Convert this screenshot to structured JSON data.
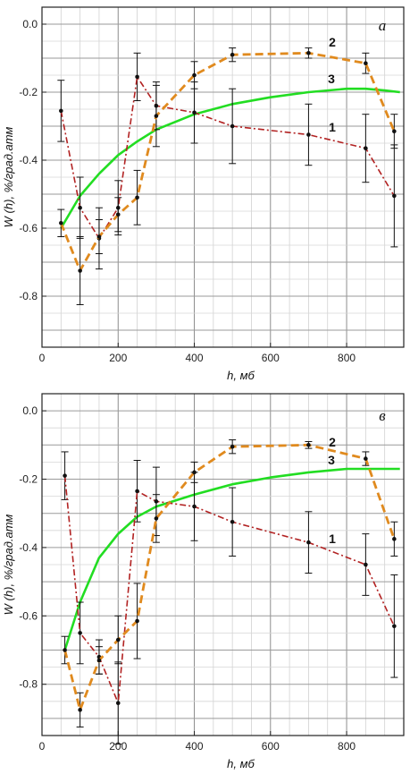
{
  "chart_data": [
    {
      "type": "line",
      "panel_label": "а",
      "xlabel": "h, мб",
      "ylabel": "W (h), %/град.атм",
      "xlim": [
        0,
        950
      ],
      "ylim": [
        -0.95,
        0.05
      ],
      "x_ticks": [
        0,
        200,
        400,
        600,
        800
      ],
      "y_ticks": [
        0.0,
        -0.2,
        -0.4,
        -0.6,
        -0.8
      ],
      "x_tick_labels": [
        "0",
        "200",
        "400",
        "600",
        "800"
      ],
      "y_tick_labels": [
        "0.0",
        "-0.2",
        "-0.4",
        "-0.6",
        "-0.8"
      ],
      "grid": true,
      "series": [
        {
          "name": "1",
          "color": "#b22222",
          "style": "dash-dot",
          "x": [
            50,
            100,
            150,
            200,
            250,
            300,
            400,
            500,
            700,
            850,
            925
          ],
          "y": [
            -0.255,
            -0.54,
            -0.63,
            -0.54,
            -0.155,
            -0.24,
            -0.26,
            -0.3,
            -0.325,
            -0.365,
            -0.505
          ],
          "error": [
            0.09,
            0.09,
            0.09,
            0.08,
            0.07,
            0.07,
            0.09,
            0.11,
            0.09,
            0.1,
            0.15
          ]
        },
        {
          "name": "2",
          "color": "#e08a1e",
          "style": "dashed",
          "x": [
            50,
            100,
            150,
            200,
            250,
            300,
            400,
            500,
            700,
            850,
            925
          ],
          "y": [
            -0.585,
            -0.725,
            -0.625,
            -0.56,
            -0.51,
            -0.27,
            -0.15,
            -0.09,
            -0.085,
            -0.115,
            -0.315
          ],
          "error": [
            0.04,
            0.1,
            0.05,
            0.05,
            0.08,
            0.09,
            0.04,
            0.02,
            0.015,
            0.03,
            0.05
          ]
        },
        {
          "name": "3",
          "color": "#22dd22",
          "style": "solid",
          "x": [
            50,
            100,
            150,
            200,
            250,
            300,
            400,
            500,
            600,
            700,
            800,
            850,
            900,
            940
          ],
          "y": [
            -0.6,
            -0.505,
            -0.44,
            -0.385,
            -0.345,
            -0.31,
            -0.265,
            -0.235,
            -0.215,
            -0.2,
            -0.19,
            -0.19,
            -0.195,
            -0.2
          ]
        }
      ]
    },
    {
      "type": "line",
      "panel_label": "в",
      "xlabel": "h, мб",
      "ylabel": "W (h), %/град.атм",
      "xlim": [
        0,
        950
      ],
      "ylim": [
        -0.95,
        0.05
      ],
      "x_ticks": [
        0,
        200,
        400,
        600,
        800
      ],
      "y_ticks": [
        0.0,
        -0.2,
        -0.4,
        -0.6,
        -0.8
      ],
      "x_tick_labels": [
        "0",
        "200",
        "400",
        "600",
        "800"
      ],
      "y_tick_labels": [
        "0.0",
        "-0.2",
        "-0.4",
        "-0.6",
        "-0.8"
      ],
      "grid": true,
      "series": [
        {
          "name": "1",
          "color": "#b22222",
          "style": "dash-dot",
          "x": [
            60,
            100,
            150,
            200,
            250,
            300,
            400,
            500,
            700,
            850,
            925
          ],
          "y": [
            -0.19,
            -0.65,
            -0.72,
            -0.855,
            -0.235,
            -0.265,
            -0.28,
            -0.325,
            -0.385,
            -0.45,
            -0.63
          ],
          "error": [
            0.07,
            0.09,
            0.05,
            0.12,
            0.09,
            0.1,
            0.1,
            0.1,
            0.09,
            0.09,
            0.15
          ]
        },
        {
          "name": "2",
          "color": "#e08a1e",
          "style": "dashed",
          "x": [
            60,
            100,
            150,
            200,
            250,
            300,
            400,
            500,
            700,
            850,
            925
          ],
          "y": [
            -0.7,
            -0.875,
            -0.73,
            -0.67,
            -0.615,
            -0.315,
            -0.18,
            -0.105,
            -0.1,
            -0.14,
            -0.375
          ],
          "error": [
            0.04,
            0.05,
            0.04,
            0.07,
            0.11,
            0.07,
            0.03,
            0.02,
            0.01,
            0.02,
            0.05
          ]
        },
        {
          "name": "3",
          "color": "#22dd22",
          "style": "solid",
          "x": [
            60,
            100,
            150,
            200,
            250,
            300,
            400,
            500,
            600,
            700,
            800,
            850,
            900,
            940
          ],
          "y": [
            -0.7,
            -0.56,
            -0.43,
            -0.36,
            -0.31,
            -0.28,
            -0.245,
            -0.215,
            -0.195,
            -0.18,
            -0.17,
            -0.17,
            -0.17,
            -0.17
          ]
        }
      ]
    }
  ]
}
